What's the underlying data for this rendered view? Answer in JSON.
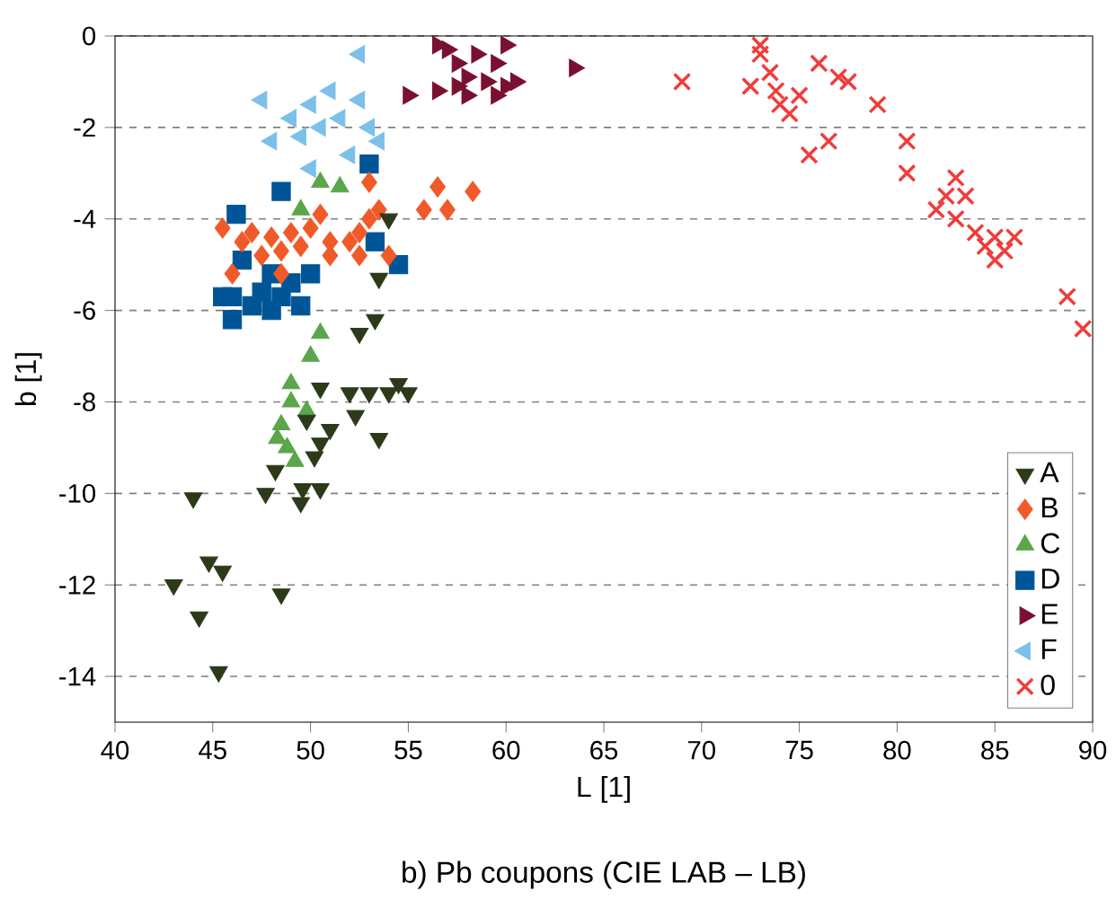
{
  "chart_data": {
    "type": "scatter",
    "title": "b) Pb coupons (CIE LAB – LB)",
    "xlabel": "L [1]",
    "ylabel": "b [1]",
    "xlim": [
      40,
      90
    ],
    "ylim": [
      -15,
      0
    ],
    "xticks": [
      40,
      45,
      50,
      55,
      60,
      65,
      70,
      75,
      80,
      85,
      90
    ],
    "yticks": [
      -14,
      -12,
      -10,
      -8,
      -6,
      -4,
      -2,
      0
    ],
    "grid": "y",
    "legend": "bottom right",
    "series": [
      {
        "name": "A",
        "color": "#2d3a1a",
        "marker": "triangle-down",
        "x": [
          44,
          43,
          44.8,
          44.3,
          45.5,
          45.3,
          48.5,
          47.7,
          48.2,
          49.5,
          50.5,
          49.6,
          50.2,
          49.8,
          50.5,
          52,
          52.3,
          53,
          54,
          55,
          54.5,
          53.5,
          53.3,
          53.5,
          54,
          51,
          50.5,
          52.5
        ],
        "values": [
          -10.1,
          -12.0,
          -11.5,
          -12.7,
          -11.7,
          -13.9,
          -12.2,
          -10.0,
          -9.5,
          -10.2,
          -9.9,
          -9.9,
          -9.2,
          -8.4,
          -7.7,
          -7.8,
          -8.3,
          -7.8,
          -7.8,
          -7.8,
          -7.6,
          -8.8,
          -6.2,
          -5.3,
          -4.0,
          -8.6,
          -8.9,
          -6.5
        ]
      },
      {
        "name": "B",
        "color": "#f05a28",
        "marker": "diamond",
        "x": [
          46,
          45.5,
          46.5,
          47,
          47.5,
          48,
          48.5,
          49,
          49.5,
          50,
          50.5,
          51,
          48.5,
          52,
          52.5,
          53,
          53.5,
          54,
          53,
          55.8,
          56.5,
          57,
          58.3,
          52.5,
          51
        ],
        "values": [
          -5.2,
          -4.2,
          -4.5,
          -4.3,
          -4.8,
          -4.4,
          -4.7,
          -4.3,
          -4.6,
          -4.2,
          -3.9,
          -4.5,
          -5.2,
          -4.5,
          -4.3,
          -4.0,
          -3.8,
          -4.8,
          -3.2,
          -3.8,
          -3.3,
          -3.8,
          -3.4,
          -4.8,
          -4.8
        ]
      },
      {
        "name": "C",
        "color": "#5aa64a",
        "marker": "triangle",
        "x": [
          50.5,
          51.5,
          49.5,
          50.5,
          50,
          49,
          49,
          48.5,
          48.3,
          48.8,
          49.2,
          49.8
        ],
        "values": [
          -3.2,
          -3.3,
          -3.8,
          -6.5,
          -7.0,
          -7.6,
          -8.0,
          -8.5,
          -8.8,
          -9.0,
          -9.3,
          -8.2
        ]
      },
      {
        "name": "D",
        "color": "#005596",
        "marker": "square",
        "x": [
          45.5,
          46,
          46.5,
          46.2,
          47,
          48,
          48.5,
          49,
          49.5,
          48.5,
          50,
          53,
          54.5,
          53.3,
          46,
          47.5,
          48
        ],
        "values": [
          -5.7,
          -6.2,
          -4.9,
          -3.9,
          -5.9,
          -6.0,
          -5.7,
          -5.4,
          -5.9,
          -3.4,
          -5.2,
          -2.8,
          -5.0,
          -4.5,
          -5.7,
          -5.6,
          -5.2
        ]
      },
      {
        "name": "E",
        "color": "#7a1030",
        "marker": "triangle-right",
        "x": [
          55,
          56.5,
          57,
          57.5,
          58,
          58.5,
          59,
          59.5,
          60,
          60.5,
          58,
          59.5,
          63.5,
          56.5,
          57.5,
          60
        ],
        "values": [
          -1.3,
          -1.2,
          -0.3,
          -0.6,
          -0.9,
          -0.4,
          -1.0,
          -1.3,
          -1.1,
          -1.0,
          -1.3,
          -0.6,
          -0.7,
          -0.2,
          -1.1,
          -0.2
        ]
      },
      {
        "name": "F",
        "color": "#7cc0ea",
        "marker": "triangle-left",
        "x": [
          47.5,
          48,
          49,
          50,
          51,
          51.5,
          52.5,
          52.5,
          53,
          53.5,
          50.5,
          49.5,
          52,
          50
        ],
        "values": [
          -1.4,
          -2.3,
          -1.8,
          -1.5,
          -1.2,
          -1.8,
          -1.4,
          -0.4,
          -2.0,
          -2.3,
          -2.0,
          -2.2,
          -2.6,
          -2.9
        ]
      },
      {
        "name": "0",
        "color": "#f03c3c",
        "marker": "cross",
        "x": [
          69,
          72.5,
          73,
          73,
          73.5,
          74,
          74.5,
          75,
          73.8,
          76,
          77,
          77.5,
          75.5,
          76.5,
          79,
          80.5,
          80.5,
          82,
          83,
          83.5,
          83,
          84,
          84.5,
          85,
          85.5,
          86,
          85,
          88.7,
          89.5,
          82.5
        ],
        "values": [
          -1.0,
          -1.1,
          -0.2,
          -0.4,
          -0.8,
          -1.5,
          -1.7,
          -1.3,
          -1.2,
          -0.6,
          -0.9,
          -1.0,
          -2.6,
          -2.3,
          -1.5,
          -2.3,
          -3.0,
          -3.8,
          -3.1,
          -3.5,
          -4.0,
          -4.3,
          -4.6,
          -4.9,
          -4.7,
          -4.4,
          -4.4,
          -5.7,
          -6.4,
          -3.5
        ]
      }
    ]
  }
}
